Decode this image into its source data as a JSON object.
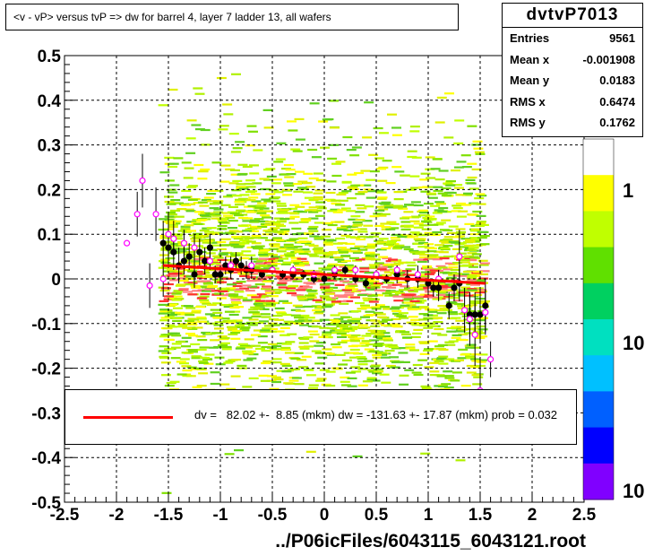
{
  "title": "<v - vP>       versus  tvP =>  dw for barrel 4, layer 7 ladder 13, all wafers",
  "stats": {
    "name": "dvtvP7013",
    "rows": [
      {
        "label": "Entries",
        "value": "9561"
      },
      {
        "label": "Mean x",
        "value": "-0.001908"
      },
      {
        "label": "Mean y",
        "value": "0.0183"
      },
      {
        "label": "RMS x",
        "value": "0.6474"
      },
      {
        "label": "RMS y",
        "value": "0.1762"
      }
    ]
  },
  "legend": {
    "text": "dv =   82.02 +-  8.85 (mkm) dw = -131.63 +- 17.87 (mkm) prob = 0.032",
    "line_color": "#ff0000"
  },
  "xfile": "../P06icFiles/6043115_6043121.root",
  "colorbar": {
    "labels": [
      "1",
      "10",
      "10"
    ],
    "colors": [
      "#ffffff",
      "#ffff00",
      "#c0ff00",
      "#60e000",
      "#00d060",
      "#00e0c0",
      "#00c0ff",
      "#0060ff",
      "#0000ff",
      "#8000ff"
    ]
  },
  "chart_data": {
    "type": "scatter",
    "xlim": [
      -2.5,
      2.5
    ],
    "ylim": [
      -0.5,
      0.5
    ],
    "x_ticks": [
      "-2.5",
      "-2",
      "-1.5",
      "-1",
      "-0.5",
      "0",
      "0.5",
      "1",
      "1.5",
      "2",
      "2.5"
    ],
    "y_ticks": [
      "0.5",
      "0.4",
      "0.3",
      "0.2",
      "0.1",
      "0",
      "-0.1",
      "-0.2",
      "-0.3",
      "-0.4",
      "-0.5"
    ],
    "grid": true,
    "series": [
      {
        "kind": "profile-black",
        "x": [
          -1.55,
          -1.5,
          -1.45,
          -1.4,
          -1.35,
          -1.3,
          -1.25,
          -1.2,
          -1.15,
          -1.1,
          -1.05,
          -1.0,
          -0.95,
          -0.9,
          -0.85,
          -0.8,
          -0.75,
          -0.7,
          -0.6,
          -0.5,
          -0.4,
          -0.3,
          -0.2,
          -0.1,
          0.0,
          0.1,
          0.2,
          0.3,
          0.4,
          0.5,
          0.6,
          0.7,
          0.8,
          0.9,
          1.0,
          1.05,
          1.1,
          1.2,
          1.25,
          1.3,
          1.4,
          1.45,
          1.5,
          1.55
        ],
        "y": [
          0.08,
          0.07,
          0.06,
          0.03,
          0.04,
          0.05,
          0.01,
          0.06,
          0.04,
          0.07,
          0.01,
          0.01,
          0.03,
          0.02,
          0.04,
          0.03,
          0.02,
          0.02,
          0.01,
          0.02,
          0.01,
          0.01,
          0.01,
          0.0,
          0.0,
          0.01,
          0.02,
          0.0,
          -0.01,
          0.01,
          0.0,
          0.01,
          0.0,
          0.0,
          -0.01,
          -0.02,
          -0.02,
          -0.06,
          -0.02,
          -0.01,
          -0.08,
          -0.08,
          -0.08,
          -0.06
        ],
        "err": [
          0.05,
          0.04,
          0.04,
          0.04,
          0.03,
          0.03,
          0.03,
          0.03,
          0.03,
          0.03,
          0.02,
          0.02,
          0.02,
          0.02,
          0.02,
          0.02,
          0.02,
          0.02,
          0.01,
          0.01,
          0.01,
          0.01,
          0.01,
          0.01,
          0.01,
          0.01,
          0.01,
          0.01,
          0.01,
          0.01,
          0.01,
          0.02,
          0.02,
          0.02,
          0.02,
          0.02,
          0.03,
          0.03,
          0.03,
          0.04,
          0.05,
          0.05,
          0.06,
          0.06
        ]
      },
      {
        "kind": "profile-magenta",
        "x": [
          -1.9,
          -1.8,
          -1.75,
          -1.68,
          -1.62,
          -1.55,
          -1.5,
          -1.45,
          -1.35,
          -1.25,
          -1.1,
          -0.9,
          -0.7,
          -0.5,
          -0.3,
          -0.1,
          0.1,
          0.3,
          0.5,
          0.7,
          0.9,
          1.1,
          1.3,
          1.35,
          1.4,
          1.45,
          1.5,
          1.55,
          1.6
        ],
        "y": [
          0.08,
          0.145,
          0.22,
          -0.015,
          0.145,
          0.0,
          0.1,
          0.09,
          0.08,
          0.07,
          0.04,
          0.03,
          0.03,
          0.02,
          0.02,
          0.01,
          0.02,
          0.02,
          0.01,
          0.02,
          0.01,
          0.0,
          0.05,
          -0.07,
          -0.09,
          -0.125,
          -0.25,
          -0.075,
          -0.18
        ],
        "err": [
          0.0,
          0.05,
          0.06,
          0.05,
          0.06,
          0.04,
          0.05,
          0.04,
          0.03,
          0.03,
          0.02,
          0.02,
          0.02,
          0.01,
          0.01,
          0.01,
          0.01,
          0.01,
          0.01,
          0.01,
          0.02,
          0.02,
          0.06,
          0.05,
          0.06,
          0.07,
          0.07,
          0.05,
          0.04
        ]
      },
      {
        "kind": "fit-line",
        "x": [
          -1.55,
          1.55
        ],
        "y": [
          0.03,
          -0.01
        ]
      }
    ]
  }
}
